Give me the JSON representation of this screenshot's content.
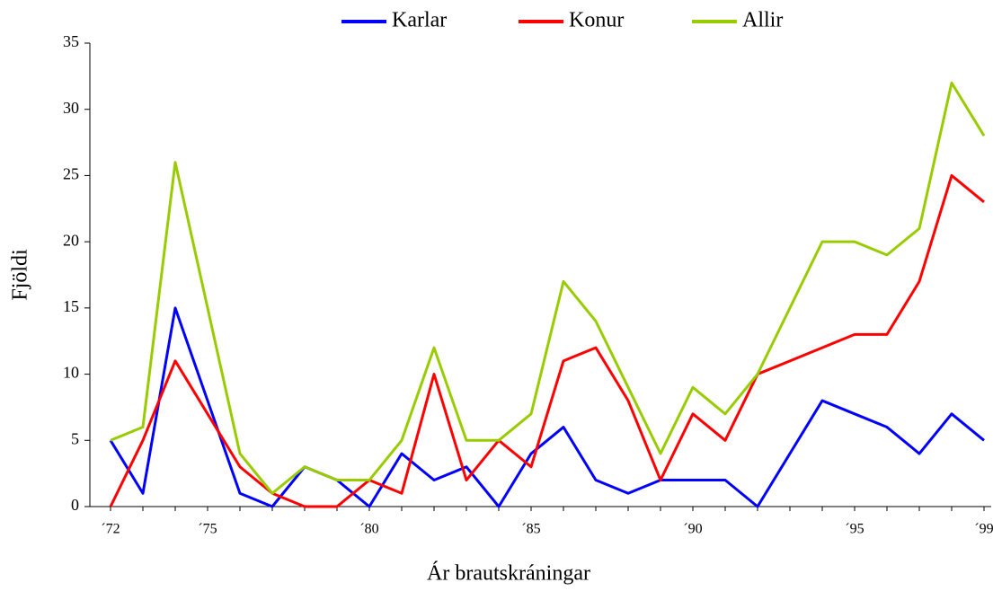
{
  "chart_data": {
    "type": "line",
    "x_label": "Ár brautskráningar",
    "y_label": "Fjöldi",
    "categories": [
      "´72",
      null,
      null,
      "´75",
      null,
      null,
      null,
      null,
      "´80",
      null,
      null,
      null,
      null,
      "´85",
      null,
      null,
      null,
      null,
      "´90",
      null,
      null,
      null,
      null,
      "´95",
      null,
      null,
      null,
      "´99"
    ],
    "series": [
      {
        "name": "Karlar",
        "color": "#0000ff",
        "values": [
          5,
          1,
          15,
          8,
          1,
          0,
          3,
          2,
          0,
          4,
          2,
          3,
          0,
          4,
          6,
          2,
          1,
          2,
          2,
          2,
          0,
          4,
          8,
          7,
          6,
          4,
          7,
          5
        ]
      },
      {
        "name": "Konur",
        "color": "#ff0000",
        "values": [
          0,
          5,
          11,
          7,
          3,
          1,
          0,
          0,
          2,
          1,
          10,
          2,
          5,
          3,
          11,
          12,
          8,
          2,
          7,
          5,
          10,
          11,
          12,
          13,
          13,
          17,
          25,
          23
        ]
      },
      {
        "name": "Allir",
        "color": "#99cc00",
        "values": [
          5,
          6,
          26,
          15,
          4,
          1,
          3,
          2,
          2,
          5,
          12,
          5,
          5,
          7,
          17,
          14,
          9,
          4,
          9,
          7,
          10,
          15,
          20,
          20,
          19,
          21,
          32,
          28
        ]
      }
    ],
    "ylim": [
      0,
      35
    ],
    "yticks": [
      0,
      5,
      10,
      15,
      20,
      25,
      30,
      35
    ],
    "legend": "top"
  }
}
